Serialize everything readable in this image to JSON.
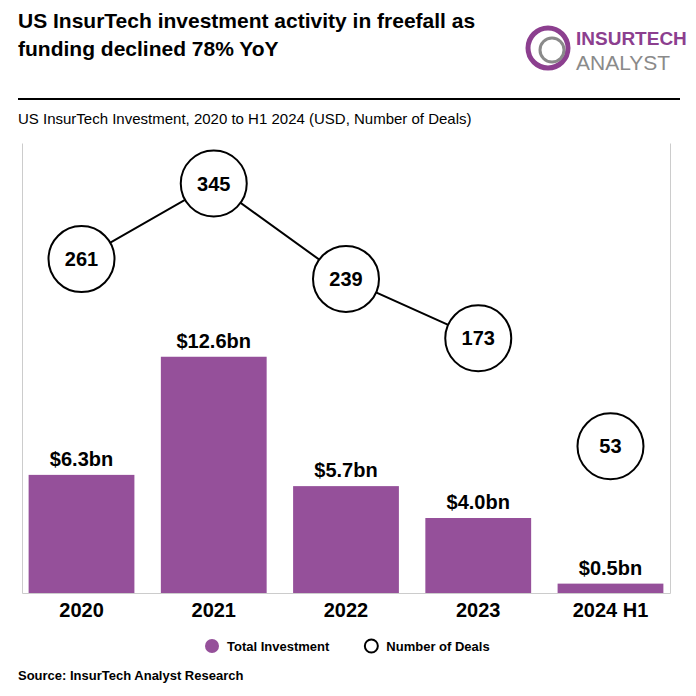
{
  "chart_data": {
    "type": "bar",
    "title": "US InsurTech investment activity in freefall as funding declined 78% YoY",
    "subtitle": "US InsurTech Investment, 2020 to H1 2024 (USD, Number of Deals)",
    "annotations": [
      "INSURTECH",
      "ANALYST"
    ],
    "source": "Source: InsurTech Analyst Research",
    "categories": [
      "2020",
      "2021",
      "2022",
      "2023",
      "2024 H1"
    ],
    "series": [
      {
        "name": "Total Investment",
        "type": "bar",
        "color": "#95509a",
        "values": [
          6.3,
          12.6,
          5.7,
          4.0,
          0.5
        ],
        "value_labels": [
          "$6.3bn",
          "$12.6bn",
          "$5.7bn",
          "$4.0bn",
          "$0.5bn"
        ]
      },
      {
        "name": "Number of Deals",
        "type": "line",
        "axis": "y2",
        "marker": "circle",
        "color": "#000000",
        "values": [
          261,
          345,
          239,
          173,
          null
        ]
      },
      {
        "type": "scatter",
        "axis": "y2",
        "marker": "circle",
        "color": "#000000",
        "values": [
          null,
          null,
          null,
          null,
          53
        ]
      }
    ],
    "ylim": [
      0,
      24
    ],
    "y2lim": [
      -110,
      390
    ],
    "grid": false,
    "legend": "bottom",
    "data_labels": true,
    "tick_labels": "x"
  }
}
